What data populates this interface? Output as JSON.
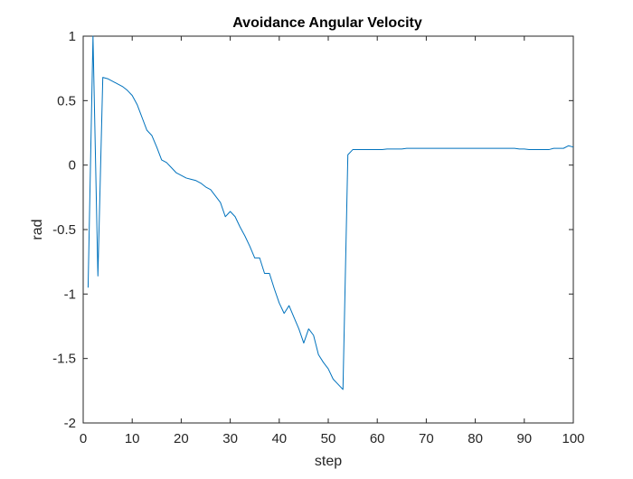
{
  "chart_data": {
    "type": "line",
    "title": "Avoidance Angular Velocity",
    "xlabel": "step",
    "ylabel": "rad",
    "xlim": [
      0,
      100
    ],
    "ylim": [
      -2,
      1
    ],
    "xticks": [
      0,
      10,
      20,
      30,
      40,
      50,
      60,
      70,
      80,
      90,
      100
    ],
    "yticks": [
      -2,
      -1.5,
      -1,
      -0.5,
      0,
      0.5,
      1
    ],
    "xtick_labels": [
      "0",
      "10",
      "20",
      "30",
      "40",
      "50",
      "60",
      "70",
      "80",
      "90",
      "100"
    ],
    "ytick_labels": [
      "-2",
      "-1.5",
      "-1",
      "-0.5",
      "0",
      "0.5",
      "1"
    ],
    "grid": false,
    "line_color": "#0072BD",
    "series": [
      {
        "x": [
          1,
          2,
          3,
          4,
          5,
          6,
          7,
          8,
          9,
          10,
          11,
          12,
          13,
          14,
          15,
          16,
          17,
          18,
          19,
          20,
          21,
          22,
          23,
          24,
          25,
          26,
          27,
          28,
          29,
          30,
          31,
          32,
          33,
          34,
          35,
          36,
          37,
          38,
          39,
          40,
          41,
          42,
          43,
          44,
          45,
          46,
          47,
          48,
          49,
          50,
          51,
          52,
          53,
          54,
          55,
          56,
          57,
          58,
          59,
          60,
          61,
          62,
          63,
          64,
          65,
          66,
          67,
          68,
          69,
          70,
          71,
          72,
          73,
          74,
          75,
          76,
          77,
          78,
          79,
          80,
          81,
          82,
          83,
          84,
          85,
          86,
          87,
          88,
          89,
          90,
          91,
          92,
          93,
          94,
          95,
          96,
          97,
          98,
          99,
          100
        ],
        "y": [
          -0.95,
          1.0,
          -0.86,
          0.68,
          0.67,
          0.65,
          0.63,
          0.61,
          0.58,
          0.54,
          0.47,
          0.37,
          0.27,
          0.23,
          0.14,
          0.04,
          0.02,
          -0.02,
          -0.06,
          -0.08,
          -0.1,
          -0.11,
          -0.12,
          -0.14,
          -0.17,
          -0.19,
          -0.24,
          -0.29,
          -0.4,
          -0.36,
          -0.4,
          -0.48,
          -0.55,
          -0.63,
          -0.72,
          -0.72,
          -0.84,
          -0.84,
          -0.96,
          -1.07,
          -1.15,
          -1.09,
          -1.18,
          -1.27,
          -1.38,
          -1.27,
          -1.32,
          -1.47,
          -1.53,
          -1.58,
          -1.66,
          -1.7,
          -1.74,
          0.08,
          0.12,
          0.12,
          0.12,
          0.12,
          0.12,
          0.12,
          0.12,
          0.125,
          0.125,
          0.125,
          0.125,
          0.13,
          0.13,
          0.13,
          0.13,
          0.13,
          0.13,
          0.13,
          0.13,
          0.13,
          0.13,
          0.13,
          0.13,
          0.13,
          0.13,
          0.13,
          0.13,
          0.13,
          0.13,
          0.13,
          0.13,
          0.13,
          0.13,
          0.13,
          0.125,
          0.125,
          0.12,
          0.12,
          0.12,
          0.12,
          0.12,
          0.13,
          0.13,
          0.13,
          0.15,
          0.14
        ]
      }
    ]
  }
}
